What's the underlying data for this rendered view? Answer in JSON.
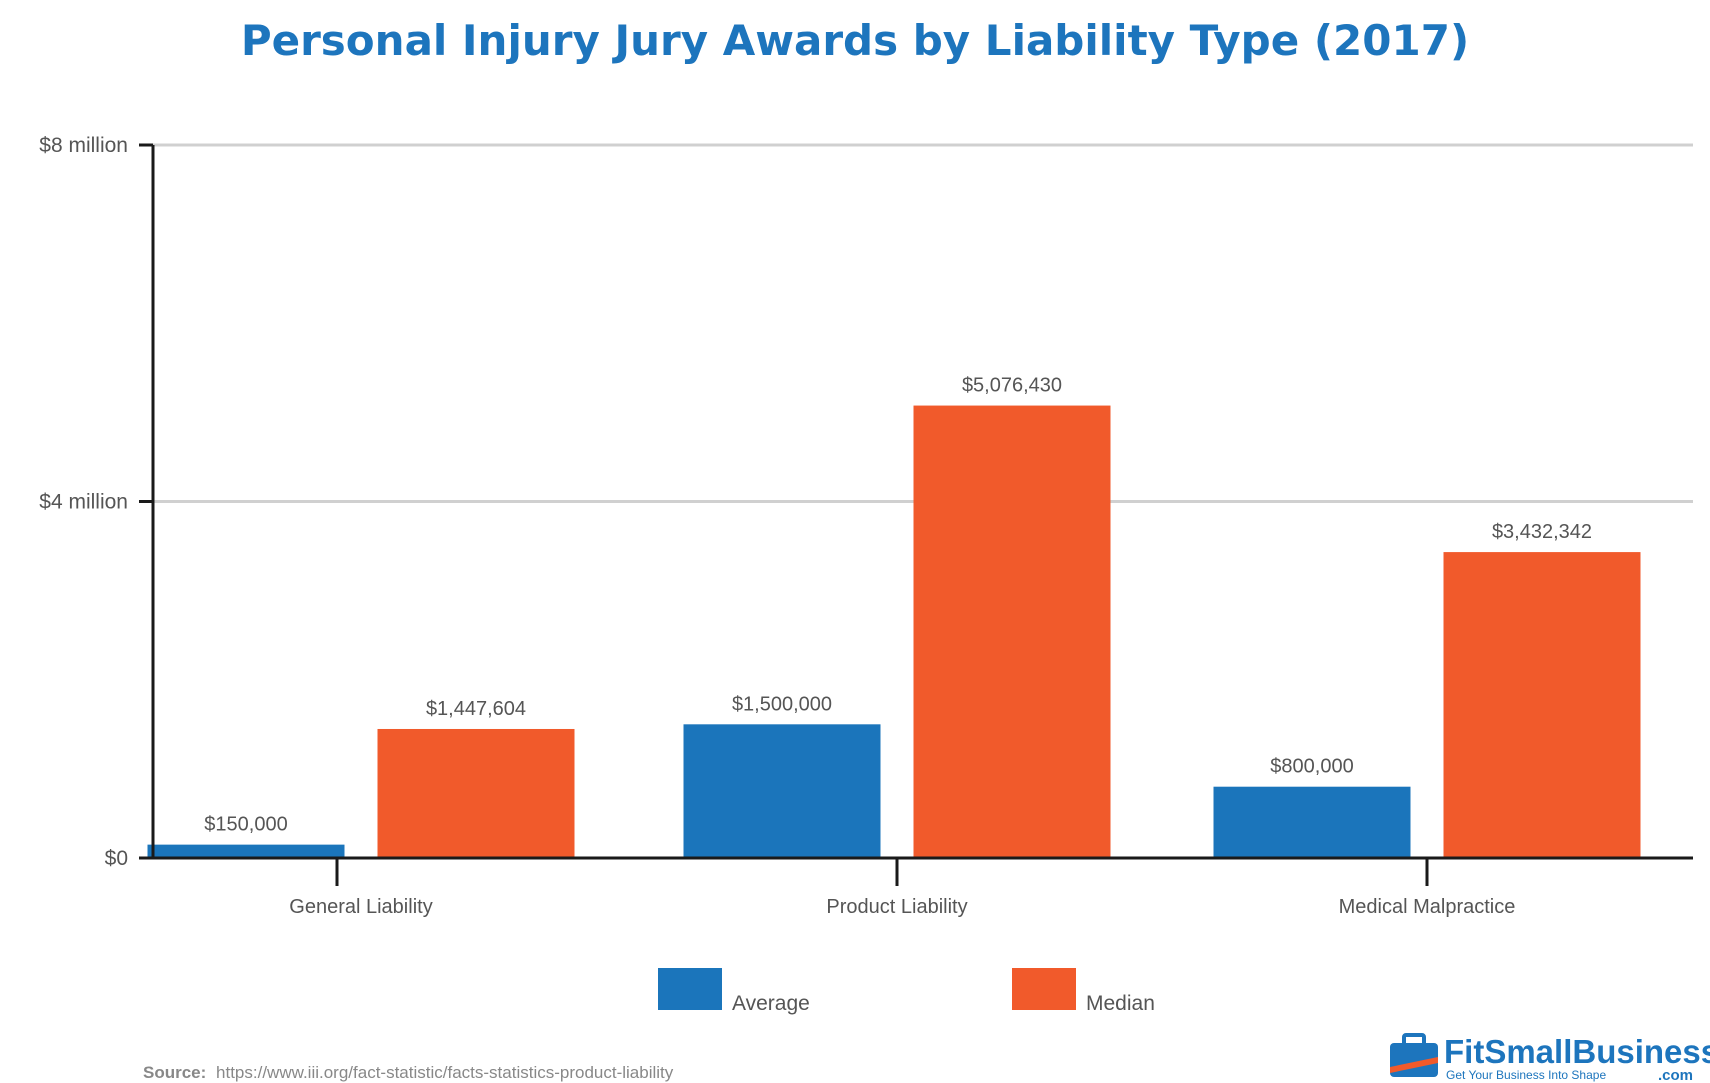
{
  "colors": {
    "title": "#1d75bd",
    "average": "#1b75bb",
    "median": "#f15a2b",
    "axis": "#1a1a1a",
    "grid": "#d0d0d0",
    "logo_blue": "#1d75bd",
    "logo_orange": "#f15a2b"
  },
  "chart_data": {
    "type": "bar",
    "title": "Personal Injury Jury Awards by Liability Type (2017)",
    "xlabel": "",
    "ylabel": "",
    "categories": [
      "General Liability",
      "Product Liability",
      "Medical Malpractice"
    ],
    "series": [
      {
        "name": "Average",
        "values": [
          150000,
          1500000,
          800000
        ],
        "labels": [
          "$150,000",
          "$1,500,000",
          "$800,000"
        ]
      },
      {
        "name": "Median",
        "values": [
          1447604,
          5076430,
          3432342
        ],
        "labels": [
          "$1,447,604",
          "$5,076,430",
          "$3,432,342"
        ]
      }
    ],
    "y_ticks": [
      {
        "value": 0,
        "label": "$0"
      },
      {
        "value": 4000000,
        "label": "$4 million"
      },
      {
        "value": 8000000,
        "label": "$8 million"
      }
    ],
    "ylim": [
      0,
      8000000
    ],
    "grid": true,
    "legend_position": "bottom-center"
  },
  "source": {
    "prefix": "Source:",
    "url": "https://www.iii.org/fact-statistic/facts-statistics-product-liability"
  },
  "logo": {
    "name": "FitSmallBusiness",
    "suffix": ".com",
    "tagline": "Get Your Business Into Shape",
    "icon": "briefcase-icon"
  }
}
